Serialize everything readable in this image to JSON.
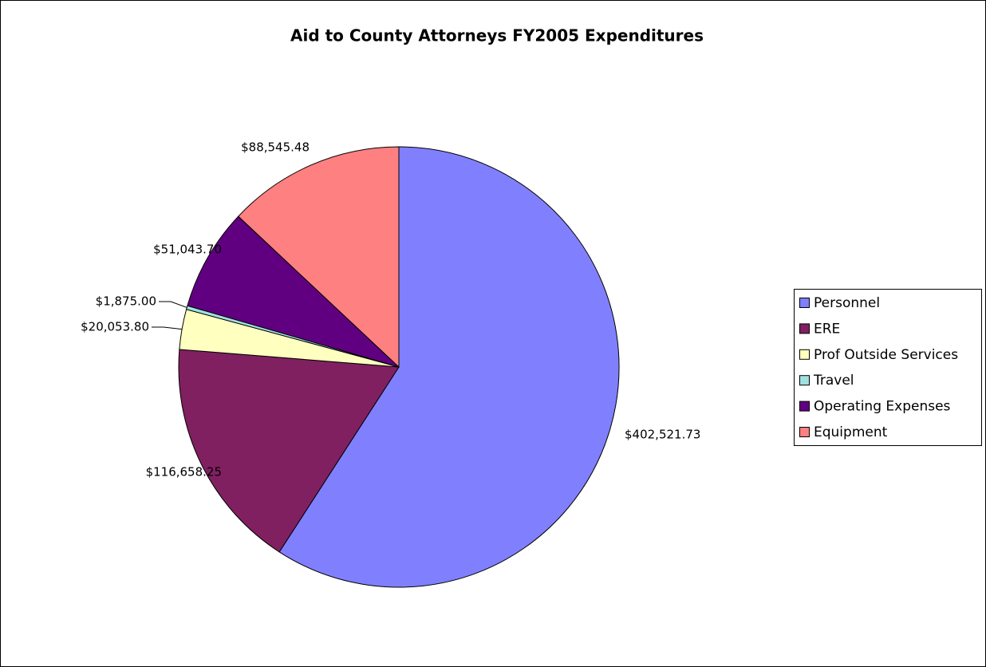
{
  "chart_data": {
    "type": "pie",
    "title": "Aid to County Attorneys FY2005 Expenditures",
    "categories": [
      "Personnel",
      "ERE",
      "Prof Outside Services",
      "Travel",
      "Operating Expenses",
      "Equipment"
    ],
    "values": [
      402521.73,
      116658.25,
      20053.8,
      1875.0,
      51043.7,
      88545.48
    ],
    "value_labels": [
      "$402,521.73",
      "$116,658.25",
      "$20,053.80",
      "$1,875.00",
      "$51,043.70",
      "$88,545.48"
    ],
    "colors": [
      "#8080ff",
      "#802060",
      "#ffffc0",
      "#a0e0e0",
      "#600080",
      "#ff8080"
    ],
    "legend": "right"
  }
}
